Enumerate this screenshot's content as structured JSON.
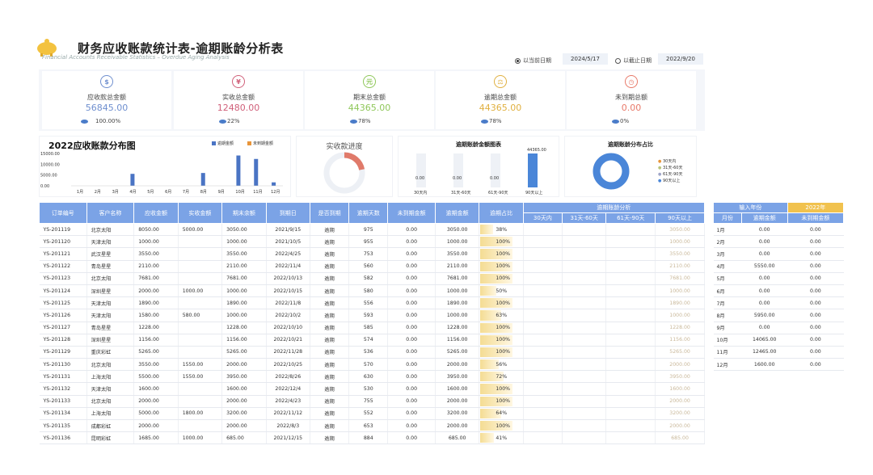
{
  "header": {
    "title": "财务应收账款统计表-逾期账龄分析表",
    "subtitle": "Financial Accounts Receivable Statistics – Overdue Aging Analysis",
    "radio_current_label": "以当前日期",
    "current_date": "2024/5/17",
    "radio_cutoff_label": "以截止日期",
    "cutoff_date": "2022/9/20"
  },
  "kpis": [
    {
      "label": "应收款总金额",
      "value": "56845.00",
      "pct": "100.00%",
      "color": "#6f8fcf",
      "icon": "money-bag-icon"
    },
    {
      "label": "实收总金额",
      "value": "12480.00",
      "pct": "22%",
      "color": "#d0607a",
      "icon": "coin-bag-icon"
    },
    {
      "label": "期末总金额",
      "value": "44365.00",
      "pct": "78%",
      "color": "#8fc75a",
      "icon": "yuan-circle-icon"
    },
    {
      "label": "逾期总金额",
      "value": "44365.00",
      "pct": "78%",
      "color": "#e0b040",
      "icon": "balance-icon"
    },
    {
      "label": "未到期总额",
      "value": "0.00",
      "pct": "0%",
      "color": "#e87a6a",
      "icon": "clock-icon"
    }
  ],
  "charts": {
    "distribution_title": "2022应收账款分布图",
    "progress_title": "实收款进度",
    "overdue_amount_title": "逾期账龄金额图表",
    "overdue_ratio_title": "逾期账龄分布占比"
  },
  "chart_data": [
    {
      "type": "bar",
      "title": "2022应收账款分布图",
      "categories": [
        "1月",
        "2月",
        "3月",
        "4月",
        "5月",
        "6月",
        "7月",
        "8月",
        "9月",
        "10月",
        "11月",
        "12月"
      ],
      "series": [
        {
          "name": "逾期金额",
          "values": [
            0,
            0,
            0,
            5550,
            0,
            0,
            0,
            5950,
            0,
            14065,
            12465,
            1600
          ],
          "color": "#4a74c4"
        },
        {
          "name": "未到期金额",
          "values": [
            0,
            0,
            0,
            0,
            0,
            0,
            0,
            0,
            0,
            0,
            0,
            0
          ],
          "color": "#e8953a"
        }
      ],
      "yticks": [
        "15000.00",
        "10000.00",
        "5000.00",
        "0.00"
      ],
      "ylim": [
        0,
        15000
      ]
    },
    {
      "type": "pie",
      "title": "实收款进度",
      "values": [
        22,
        78
      ]
    },
    {
      "type": "bar",
      "title": "逾期账龄金额图表",
      "categories": [
        "30天内",
        "31天-60天",
        "61天-90天",
        "90天以上"
      ],
      "values": [
        0,
        0,
        0,
        44365
      ],
      "labels": [
        "0.00",
        "0.00",
        "0.00",
        "44365.00"
      ]
    },
    {
      "type": "pie",
      "title": "逾期账龄分布占比",
      "categories": [
        "30天内",
        "31天-60天",
        "61天-90天",
        "90天以上"
      ],
      "values": [
        0,
        0,
        0,
        100
      ],
      "colors": [
        "#e8953a",
        "#b8c47a",
        "#a0a6c8",
        "#4a86d8"
      ]
    }
  ],
  "table": {
    "headers": [
      "订单编号",
      "客户名称",
      "应收金额",
      "实收金额",
      "期末余额",
      "到期日",
      "是否到期",
      "逾期天数",
      "未到期金额",
      "逾期金额",
      "逾期占比"
    ],
    "aging_group_header": "逾期账龄分析",
    "aging_headers": [
      "30天内",
      "31天-60天",
      "61天-90天",
      "90天以上"
    ],
    "rows": [
      {
        "id": "YS-201119",
        "customer": "北京太阳",
        "receivable": "8050.00",
        "received": "5000.00",
        "balance": "3050.00",
        "due": "2021/9/15",
        "status": "逾期",
        "days": "975",
        "not_due": "0.00",
        "overdue": "3050.00",
        "ratio": "38%",
        "r": 0.38,
        "over90": "3050.00"
      },
      {
        "id": "YS-201120",
        "customer": "天津太阳",
        "receivable": "1000.00",
        "received": "",
        "balance": "1000.00",
        "due": "2021/10/5",
        "status": "逾期",
        "days": "955",
        "not_due": "0.00",
        "overdue": "1000.00",
        "ratio": "100%",
        "r": 1,
        "over90": "1000.00"
      },
      {
        "id": "YS-201121",
        "customer": "武汉星星",
        "receivable": "3550.00",
        "received": "",
        "balance": "3550.00",
        "due": "2022/4/25",
        "status": "逾期",
        "days": "753",
        "not_due": "0.00",
        "overdue": "3550.00",
        "ratio": "100%",
        "r": 1,
        "over90": "3550.00"
      },
      {
        "id": "YS-201122",
        "customer": "青岛星星",
        "receivable": "2110.00",
        "received": "",
        "balance": "2110.00",
        "due": "2022/11/4",
        "status": "逾期",
        "days": "560",
        "not_due": "0.00",
        "overdue": "2110.00",
        "ratio": "100%",
        "r": 1,
        "over90": "2110.00"
      },
      {
        "id": "YS-201123",
        "customer": "北京太阳",
        "receivable": "7681.00",
        "received": "",
        "balance": "7681.00",
        "due": "2022/10/13",
        "status": "逾期",
        "days": "582",
        "not_due": "0.00",
        "overdue": "7681.00",
        "ratio": "100%",
        "r": 1,
        "over90": "7681.00"
      },
      {
        "id": "YS-201124",
        "customer": "深圳星星",
        "receivable": "2000.00",
        "received": "1000.00",
        "balance": "1000.00",
        "due": "2022/10/15",
        "status": "逾期",
        "days": "580",
        "not_due": "0.00",
        "overdue": "1000.00",
        "ratio": "50%",
        "r": 0.5,
        "over90": "1000.00"
      },
      {
        "id": "YS-201125",
        "customer": "天津太阳",
        "receivable": "1890.00",
        "received": "",
        "balance": "1890.00",
        "due": "2022/11/8",
        "status": "逾期",
        "days": "556",
        "not_due": "0.00",
        "overdue": "1890.00",
        "ratio": "100%",
        "r": 1,
        "over90": "1890.00"
      },
      {
        "id": "YS-201126",
        "customer": "天津太阳",
        "receivable": "1580.00",
        "received": "580.00",
        "balance": "1000.00",
        "due": "2022/10/2",
        "status": "逾期",
        "days": "593",
        "not_due": "0.00",
        "overdue": "1000.00",
        "ratio": "63%",
        "r": 0.63,
        "over90": "1000.00"
      },
      {
        "id": "YS-201127",
        "customer": "青岛星星",
        "receivable": "1228.00",
        "received": "",
        "balance": "1228.00",
        "due": "2022/10/10",
        "status": "逾期",
        "days": "585",
        "not_due": "0.00",
        "overdue": "1228.00",
        "ratio": "100%",
        "r": 1,
        "over90": "1228.00"
      },
      {
        "id": "YS-201128",
        "customer": "深圳星星",
        "receivable": "1156.00",
        "received": "",
        "balance": "1156.00",
        "due": "2022/10/21",
        "status": "逾期",
        "days": "574",
        "not_due": "0.00",
        "overdue": "1156.00",
        "ratio": "100%",
        "r": 1,
        "over90": "1156.00"
      },
      {
        "id": "YS-201129",
        "customer": "重庆彩虹",
        "receivable": "5265.00",
        "received": "",
        "balance": "5265.00",
        "due": "2022/11/28",
        "status": "逾期",
        "days": "536",
        "not_due": "0.00",
        "overdue": "5265.00",
        "ratio": "100%",
        "r": 1,
        "over90": "5265.00"
      },
      {
        "id": "YS-201130",
        "customer": "北京太阳",
        "receivable": "3550.00",
        "received": "1550.00",
        "balance": "2000.00",
        "due": "2022/10/25",
        "status": "逾期",
        "days": "570",
        "not_due": "0.00",
        "overdue": "2000.00",
        "ratio": "56%",
        "r": 0.56,
        "over90": "2000.00"
      },
      {
        "id": "YS-201131",
        "customer": "上海太阳",
        "receivable": "5500.00",
        "received": "1550.00",
        "balance": "3950.00",
        "due": "2022/8/26",
        "status": "逾期",
        "days": "630",
        "not_due": "0.00",
        "overdue": "3950.00",
        "ratio": "72%",
        "r": 0.72,
        "over90": "3950.00"
      },
      {
        "id": "YS-201132",
        "customer": "天津太阳",
        "receivable": "1600.00",
        "received": "",
        "balance": "1600.00",
        "due": "2022/12/4",
        "status": "逾期",
        "days": "530",
        "not_due": "0.00",
        "overdue": "1600.00",
        "ratio": "100%",
        "r": 1,
        "over90": "1600.00"
      },
      {
        "id": "YS-201133",
        "customer": "北京太阳",
        "receivable": "2000.00",
        "received": "",
        "balance": "2000.00",
        "due": "2022/4/23",
        "status": "逾期",
        "days": "755",
        "not_due": "0.00",
        "overdue": "2000.00",
        "ratio": "100%",
        "r": 1,
        "over90": "2000.00"
      },
      {
        "id": "YS-201134",
        "customer": "上海太阳",
        "receivable": "5000.00",
        "received": "1800.00",
        "balance": "3200.00",
        "due": "2022/11/12",
        "status": "逾期",
        "days": "552",
        "not_due": "0.00",
        "overdue": "3200.00",
        "ratio": "64%",
        "r": 0.64,
        "over90": "3200.00"
      },
      {
        "id": "YS-201135",
        "customer": "成都彩虹",
        "receivable": "2000.00",
        "received": "",
        "balance": "2000.00",
        "due": "2022/8/3",
        "status": "逾期",
        "days": "653",
        "not_due": "0.00",
        "overdue": "2000.00",
        "ratio": "100%",
        "r": 1,
        "over90": "2000.00"
      },
      {
        "id": "YS-201136",
        "customer": "昆明彩虹",
        "receivable": "1685.00",
        "received": "1000.00",
        "balance": "685.00",
        "due": "2021/12/15",
        "status": "逾期",
        "days": "884",
        "not_due": "0.00",
        "overdue": "685.00",
        "ratio": "41%",
        "r": 0.41,
        "over90": "685.00"
      }
    ]
  },
  "side": {
    "year_label": "输入年份",
    "year_value": "2022年",
    "headers": [
      "月份",
      "逾期金额",
      "未到期金额"
    ],
    "rows": [
      {
        "m": "1月",
        "o": "0.00",
        "n": "0.00"
      },
      {
        "m": "2月",
        "o": "0.00",
        "n": "0.00"
      },
      {
        "m": "3月",
        "o": "0.00",
        "n": "0.00"
      },
      {
        "m": "4月",
        "o": "5550.00",
        "n": "0.00"
      },
      {
        "m": "5月",
        "o": "0.00",
        "n": "0.00"
      },
      {
        "m": "6月",
        "o": "0.00",
        "n": "0.00"
      },
      {
        "m": "7月",
        "o": "0.00",
        "n": "0.00"
      },
      {
        "m": "8月",
        "o": "5950.00",
        "n": "0.00"
      },
      {
        "m": "9月",
        "o": "0.00",
        "n": "0.00"
      },
      {
        "m": "10月",
        "o": "14065.00",
        "n": "0.00"
      },
      {
        "m": "11月",
        "o": "12465.00",
        "n": "0.00"
      },
      {
        "m": "12月",
        "o": "1600.00",
        "n": "0.00"
      }
    ]
  }
}
